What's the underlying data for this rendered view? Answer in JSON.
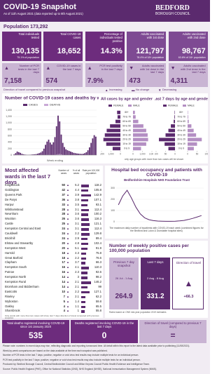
{
  "header": {
    "title": "COVID-19 Snapshot",
    "subtitle": "As of 11th August 2021 (data reported up to 8th August 2021)",
    "logo_line1": "BEDFORD",
    "logo_line2": "BOROUGH COUNCIL"
  },
  "population": "Population 173,292",
  "tiles": [
    {
      "label": "Total individuals tested",
      "value": "130,135",
      "note": "75.1% of population"
    },
    {
      "label": "Total COVID-19 cases",
      "value": "18,652",
      "note": ""
    },
    {
      "label": "Percentage of individuals tested positive",
      "value": "14.3%",
      "note": ""
    },
    {
      "label": "Adults vaccinated with 1st dose",
      "value": "121,797",
      "note": "78.4% of 18+ population"
    },
    {
      "label": "Adults vaccinated with 2nd dose",
      "value": "98,767",
      "note": "63.6% of 18+ population"
    }
  ],
  "tiles_7day": [
    {
      "label": "Number of PCR tests in the last 7 days",
      "value": "7,158",
      "arrow": "▲"
    },
    {
      "label": "COVID-19 cases in the last 7 days",
      "value": "574",
      "arrow": "▲"
    },
    {
      "label": "PCR test positivity in the last 7 days",
      "value": "7.9%",
      "arrow": "▲"
    },
    {
      "label": "Adults vaccinated with 1st dose in the last 7 days",
      "value": "473",
      "arrow": "▼"
    },
    {
      "label": "Adults vaccinated with 2nd dose in the last 7 days",
      "value": "4,311",
      "arrow": "▼"
    }
  ],
  "travel_legend": {
    "label": "Direction of travel compared to previous snapshot",
    "items": [
      {
        "arrow": "▲",
        "text": "Increasing"
      },
      {
        "arrow": "▬",
        "text": "No change"
      },
      {
        "arrow": "▼",
        "text": "Decreasing"
      }
    ]
  },
  "chart_data": [
    {
      "type": "bar",
      "title": "Number of COVID-19 cases and deaths by week",
      "x_label": "Week ending",
      "categories": [
        null,
        null,
        null,
        null,
        null,
        null,
        null,
        null,
        null,
        null,
        null,
        null,
        null,
        null,
        null,
        null,
        null,
        null,
        null,
        null,
        null,
        null,
        null,
        null,
        null,
        null,
        null,
        null,
        null,
        null,
        null,
        null,
        null,
        null,
        null,
        null,
        null,
        null,
        null,
        null,
        null,
        null,
        null,
        null,
        null,
        null,
        null,
        null,
        null,
        null,
        null,
        null,
        null
      ],
      "series": [
        {
          "name": "CASES",
          "color": "#5b2a6e",
          "values": [
            20,
            60,
            110,
            90,
            70,
            40,
            25,
            15,
            10,
            8,
            10,
            15,
            20,
            25,
            30,
            45,
            60,
            80,
            120,
            200,
            320,
            420,
            480,
            390,
            330,
            400,
            560,
            900,
            1230,
            1050,
            640,
            380,
            250,
            180,
            150,
            130,
            110,
            90,
            70,
            60,
            50,
            45,
            40,
            35,
            40,
            60,
            90,
            150,
            240,
            380,
            520,
            620,
            574
          ]
        },
        {
          "name": "DEATHS",
          "color": "#c9a9d6",
          "values": [
            0,
            5,
            12,
            14,
            10,
            6,
            3,
            2,
            1,
            0,
            0,
            0,
            0,
            0,
            0,
            0,
            1,
            1,
            2,
            4,
            6,
            8,
            9,
            7,
            6,
            7,
            10,
            18,
            30,
            35,
            22,
            12,
            6,
            3,
            2,
            1,
            1,
            0,
            0,
            0,
            0,
            0,
            0,
            0,
            0,
            0,
            0,
            0,
            1,
            1,
            1,
            2,
            0
          ]
        }
      ],
      "ylim": [
        0,
        1400
      ],
      "yticks": [
        0,
        200,
        400,
        600,
        800,
        {
          "value": 1000,
          "label": "1,000"
        },
        {
          "value": 1200,
          "label": "1,200"
        },
        {
          "value": 1400,
          "label": "1,400"
        }
      ],
      "grid": true
    },
    {
      "type": "pyramid",
      "title": "All cases by age and gender",
      "categories": [
        "80+",
        "70 to 79",
        "60 to 69",
        "50 to 59",
        "40 to 49",
        "30 to 39",
        "20 to 29",
        "10 to 19",
        "0 to 9"
      ],
      "series": [
        {
          "name": "FEMALE",
          "color": "#5b2a6e",
          "values": [
            350,
            300,
            520,
            1100,
            1450,
            1650,
            1800,
            1500,
            820
          ]
        },
        {
          "name": "MALE",
          "color": "#b48fc3",
          "values": [
            200,
            280,
            560,
            1100,
            1400,
            1550,
            1600,
            1400,
            850
          ]
        }
      ],
      "xlim": [
        0,
        2000
      ],
      "xticks": [
        0,
        {
          "value": 1000,
          "label": "1,000"
        },
        {
          "value": 2000,
          "label": "2,000"
        }
      ]
    },
    {
      "type": "pyramid",
      "title": "Last 7 days by age and gender",
      "categories": [
        "80+",
        "70 to 79",
        "60 to 69",
        "50 to 59",
        "40 to 49",
        "30 to 39",
        "20 to 29",
        "10 to 19",
        "0 to 9"
      ],
      "series": [
        {
          "name": "FEMALE",
          "color": "#5b2a6e",
          "values": [
            2,
            3,
            7,
            22,
            35,
            50,
            85,
            55,
            35
          ]
        },
        {
          "name": "MALE",
          "color": "#b48fc3",
          "values": [
            2,
            3,
            6,
            20,
            32,
            45,
            75,
            50,
            33
          ]
        }
      ],
      "xlim": [
        0,
        100
      ],
      "xticks": [
        0,
        50,
        100
      ]
    },
    {
      "type": "line",
      "title": "Hospital bed occupancy and patients with COVID-19",
      "subtitle": "Bedfordshire Hospitals NHS Foundation Trust",
      "categories": [
        null,
        null,
        null,
        null,
        null,
        null,
        null,
        null,
        null,
        null,
        null,
        null,
        null,
        null,
        null,
        null,
        null,
        null,
        null,
        null
      ],
      "series": [
        {
          "name": "COVID-19 patients",
          "color": "#5b2a6e",
          "values": [
            150,
            230,
            280,
            210,
            130,
            70,
            35,
            18,
            10,
            6,
            5,
            4,
            4,
            5,
            8,
            12,
            20,
            30,
            42,
            55
          ]
        }
      ],
      "ylim": [
        0,
        300
      ],
      "yticks": [
        0,
        100,
        200,
        300
      ],
      "grid": true,
      "note": "The maximum daily number of inpatients with COVID-19 each week (combined figures for the Bedford and Luton & Dunstable hospital sites)"
    }
  ],
  "wards": {
    "title": "Most affected wards in the last 7 days",
    "headers": [
      "Number of cases",
      "% of all cases",
      "Rate per 100,000 population"
    ],
    "rows": [
      [
        "Kingsbrook",
        50,
        "▲",
        5.2,
        118.2
      ],
      [
        "Goldington",
        42,
        "▲",
        4.4,
        105.8
      ],
      [
        "Queens Park",
        37,
        "▲",
        3.9,
        142.9
      ],
      [
        "De Parys",
        36,
        "▲",
        3.8,
        107.1
      ],
      [
        "Harpur",
        33,
        "▲",
        3.5,
        93.1
      ],
      [
        "Wilshamstead",
        28,
        "▲",
        3.1,
        112.4
      ],
      [
        "Newnham",
        28,
        "▲",
        3.6,
        100.2
      ],
      [
        "Wootton",
        26,
        "▲",
        3.6,
        116.3
      ],
      [
        "Castle",
        25,
        "▲",
        3.1,
        121.1
      ],
      [
        "Kempston Central and East",
        24,
        "▲",
        3.1,
        112.4
      ],
      [
        "Cauldwell",
        24,
        "▲",
        2.2,
        129.8
      ],
      [
        "Brickhill",
        24,
        "▲",
        2.9,
        89.4
      ],
      [
        "Elstow and Stewartby",
        20,
        "▲",
        4.8,
        102.4
      ],
      [
        "Kempston West",
        20,
        "▲",
        5.1,
        91.9
      ],
      [
        "Harrold",
        18,
        "▲",
        4.3,
        75.8
      ],
      [
        "Great Barford",
        18,
        "▲",
        2.2,
        76.6
      ],
      [
        "Clapham",
        17,
        "▲",
        3.7,
        66.3
      ],
      [
        "Kempston South",
        16,
        "▲",
        4.1,
        110.3
      ],
      [
        "Putnoe",
        16,
        "▲",
        2.3,
        92.6
      ],
      [
        "Kempston North",
        14,
        "▲",
        3.0,
        98.2
      ],
      [
        "Kempston Rural",
        14,
        "▲",
        2.1,
        146.2
      ],
      [
        "Bromham and Biddenham",
        14,
        "▲",
        2.1,
        99.0
      ],
      [
        "Eastcotts",
        10,
        "▲",
        2.2,
        127.1
      ],
      [
        "Riseley",
        7,
        "▲",
        2.1,
        62.2
      ],
      [
        "Wyboston",
        5,
        "▲",
        1.4,
        59.8
      ],
      [
        "Oakley",
        4,
        "▲",
        1.1,
        65.5
      ],
      [
        "Sharnbrook",
        4,
        "▲",
        1.0,
        55.8
      ]
    ],
    "note": "Only wards with more than two cases will show, last 7 days direction of travel compared with previous snapshot"
  },
  "pyramid_note": "only age groups with more than two cases will be shown",
  "rates": {
    "title": "Number of weekly positive cases per 100,000 population",
    "boxes": [
      {
        "label": "Previous 7 day snapshot",
        "dates": "26 Jul - 1 Aug",
        "value": "264.9"
      },
      {
        "label": "Last 7 days",
        "dates": "2 Aug - 8 Aug",
        "value": "331.2"
      }
    ],
    "direction": {
      "label": "Direction of travel",
      "arrow": "▲",
      "value": "+66.3"
    },
    "note": "Rates based on ONS mid-year population 2019 estimates"
  },
  "footer_tiles": [
    {
      "label": "Total deaths registered involving COVID-19 since 1st January 2020",
      "value": "535"
    },
    {
      "label": "Deaths registered involving COVID-19 in the last 7 days",
      "value": "0"
    },
    {
      "label": "Direction of travel (compared to previous 7 days)",
      "value": "="
    }
  ],
  "footnotes": [
    "Please note: numbers in recent days may rise, reflecting diagnostic and reporting turnaround time. All detail within this report is the latest data available prior to publishing (11/08/2021).",
    "Week-by-week comparisons are based on the data available at the time each snapshot was published.",
    "Number of PCR tests in the last 7 days: positive, negative or void virus test results may include multiple tests for an individual person.",
    "PCR test positivity in the last 7 days: positive, negative or void virus test results may also include multiple tests for an individual person.",
    "Produced by: Bedford Borough Council, Central Bedfordshire Council and Milton Keynes Council Public Health Evidence and Intelligence Team.",
    "Source: Public Health England (PHE), Office for National Statistics (ONS), NHS England (NHSE), National Immunisation Management System (NIMS)."
  ]
}
